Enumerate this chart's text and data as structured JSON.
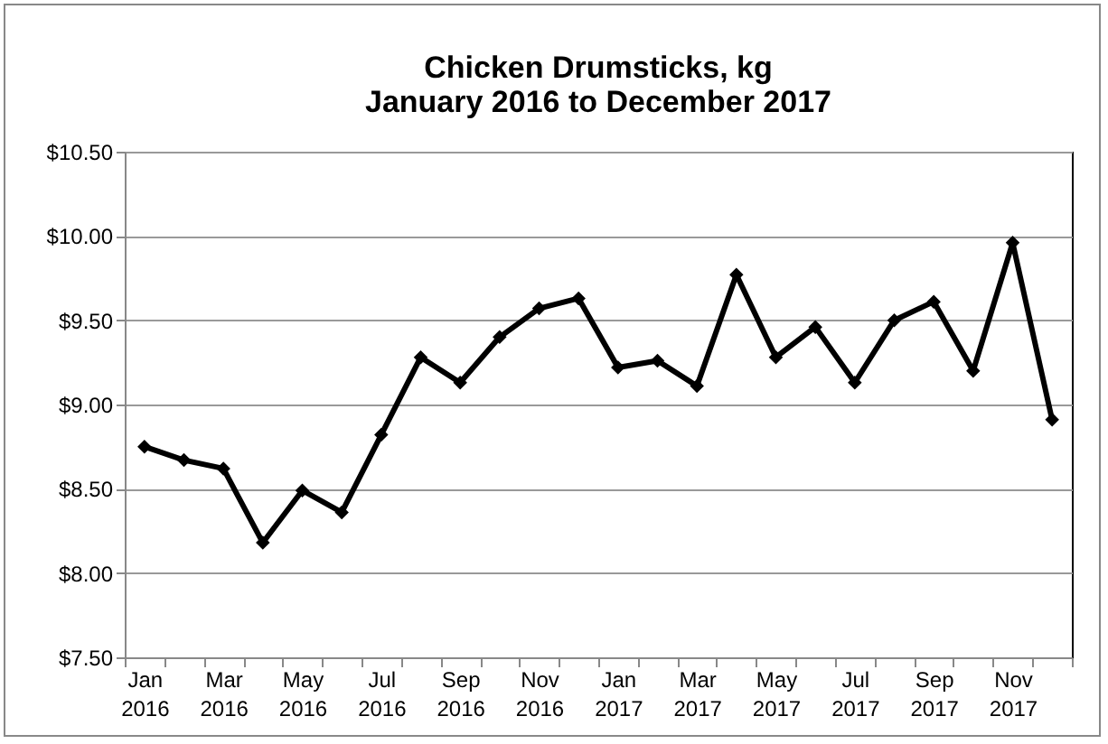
{
  "chart_data": {
    "type": "line",
    "title": "Chicken Drumsticks, kg",
    "subtitle": "January 2016 to December 2017",
    "categories": [
      "Jan 2016",
      null,
      "Mar 2016",
      null,
      "May 2016",
      null,
      "Jul 2016",
      null,
      "Sep 2016",
      null,
      "Nov 2016",
      null,
      "Jan 2017",
      null,
      "Mar 2017",
      null,
      "May 2017",
      null,
      "Jul 2017",
      null,
      "Sep 2017",
      null,
      "Nov 2017",
      null
    ],
    "series": [
      {
        "color": "#000000",
        "values": [
          8.75,
          8.67,
          8.62,
          8.18,
          8.49,
          8.36,
          8.82,
          9.28,
          9.13,
          9.4,
          9.57,
          9.63,
          9.22,
          9.26,
          9.11,
          9.77,
          9.28,
          9.46,
          9.13,
          9.5,
          9.61,
          9.2,
          9.96,
          8.91
        ]
      }
    ],
    "ylim": [
      7.5,
      10.5
    ],
    "yticks": [
      {
        "value": 7.5,
        "label": "$7.50"
      },
      {
        "value": 8,
        "label": "$8.00"
      },
      {
        "value": 8.5,
        "label": "$8.50"
      },
      {
        "value": 9,
        "label": "$9.00"
      },
      {
        "value": 9.5,
        "label": "$9.50"
      },
      {
        "value": 10,
        "label": "$10.00"
      },
      {
        "value": 10.5,
        "label": "$10.50"
      }
    ],
    "grid": "y",
    "marker": "diamond",
    "line_style": "solid",
    "legend": false
  }
}
